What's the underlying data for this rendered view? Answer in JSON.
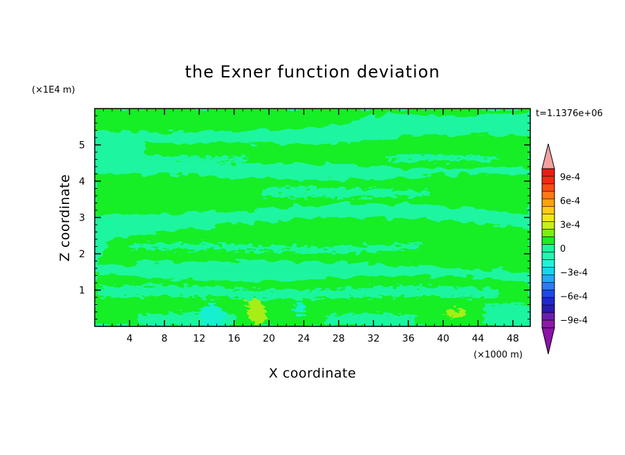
{
  "chart_data": {
    "type": "heatmap",
    "title": "the Exner function deviation",
    "xlabel": "X coordinate",
    "ylabel": "Z coordinate",
    "x_unit": "(×1000 m)",
    "y_unit": "(×1E4 m)",
    "time_label": "t=1.1376e+06",
    "xlim": [
      0,
      50
    ],
    "ylim": [
      0,
      6
    ],
    "x_ticks": [
      4,
      8,
      12,
      16,
      20,
      24,
      28,
      32,
      36,
      40,
      44,
      48
    ],
    "y_ticks": [
      1,
      2,
      3,
      4,
      5
    ],
    "colorbar": {
      "levels": [
        -0.001,
        -0.0009,
        -0.0008,
        -0.0007,
        -0.0006,
        -0.0005,
        -0.0004,
        -0.0003,
        -0.0002,
        -0.0001,
        0,
        0.0001,
        0.0002,
        0.0003,
        0.0004,
        0.0005,
        0.0006,
        0.0007,
        0.0008,
        0.0009,
        0.001
      ],
      "colors": [
        "#8c1aa6",
        "#6a1eb0",
        "#2a1ab0",
        "#1d28d2",
        "#1e48ea",
        "#2e7bf2",
        "#22a8f4",
        "#14d8ec",
        "#22f2d8",
        "#22f7b0",
        "#1ef5a0",
        "#18ee28",
        "#7cf010",
        "#c8f012",
        "#f0e814",
        "#ffcc14",
        "#ffa014",
        "#ff7814",
        "#ff4a14",
        "#f02a14",
        "#e81e14"
      ],
      "over_color": "#f4a0a0",
      "under_color": "#8c12a8",
      "tick_labels": [
        "9e-4",
        "6e-4",
        "3e-4",
        "0",
        "−3e-4",
        "−6e-4",
        "−9e-4"
      ],
      "tick_values": [
        0.0009,
        0.0006,
        0.0003,
        0,
        -0.0003,
        -0.0006,
        -0.0009
      ]
    },
    "regions": [
      {
        "level": "slightly positive (0 to 1e-4)",
        "color": "#18ee28",
        "x": [
          0,
          50
        ],
        "z": [
          5.6,
          6.0
        ]
      },
      {
        "level": "slightly positive (0 to 1e-4)",
        "color": "#18ee28",
        "x": [
          6,
          50
        ],
        "z": [
          4.7,
          5.3
        ]
      },
      {
        "level": "slightly positive (0 to 1e-4)",
        "color": "#18ee28",
        "x": [
          0,
          50
        ],
        "z": [
          3.0,
          4.2
        ]
      },
      {
        "level": "slightly positive (0 to 1e-4)",
        "color": "#18ee28",
        "x": [
          2,
          50
        ],
        "z": [
          1.8,
          2.9
        ]
      },
      {
        "level": "slightly positive (0 to 1e-4)",
        "color": "#18ee28",
        "x": [
          0,
          50
        ],
        "z": [
          0.0,
          1.6
        ]
      },
      {
        "level": "about 3e-4",
        "color": "#a8ee14",
        "x": [
          17,
          20
        ],
        "z": [
          0.1,
          0.7
        ]
      },
      {
        "level": "about 3e-4",
        "color": "#a8ee14",
        "x": [
          39,
          42
        ],
        "z": [
          0.2,
          0.4
        ]
      },
      {
        "level": "about -1e-4",
        "color": "#14f0d0",
        "x": [
          11,
          15
        ],
        "z": [
          0.0,
          0.6
        ]
      },
      {
        "level": "about -1e-4",
        "color": "#14f0d0",
        "x": [
          21,
          23
        ],
        "z": [
          0.3,
          0.5
        ]
      }
    ]
  }
}
